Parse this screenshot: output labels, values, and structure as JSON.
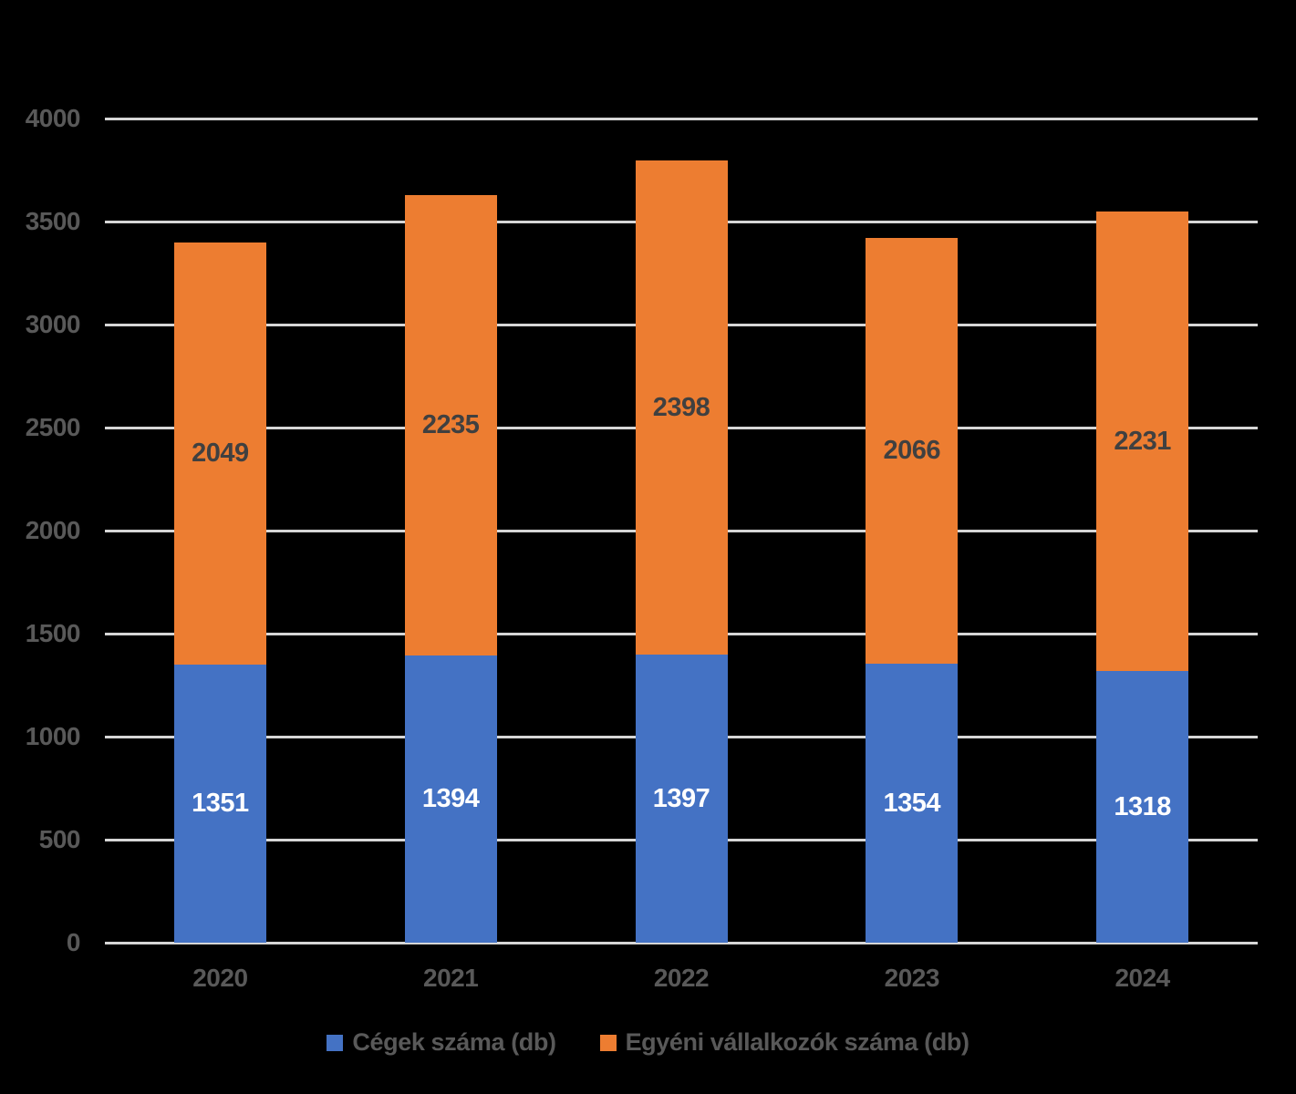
{
  "page": {
    "background": "#000000"
  },
  "chart_data": {
    "type": "bar",
    "stacked": true,
    "title": "",
    "xlabel": "",
    "ylabel": "",
    "categories": [
      "2020",
      "2021",
      "2022",
      "2023",
      "2024"
    ],
    "series": [
      {
        "name": "Cégek száma (db)",
        "color": "#4472C4",
        "label_color": "#FFFFFF",
        "values": [
          1351,
          1394,
          1397,
          1354,
          1318
        ]
      },
      {
        "name": "Egyéni vállalkozók száma (db)",
        "color": "#ED7D31",
        "label_color": "#404040",
        "values": [
          2049,
          2235,
          2398,
          2066,
          2231
        ]
      }
    ],
    "totals": [
      3400,
      3629,
      3795,
      3420,
      3549
    ],
    "ylim": [
      0,
      4000
    ],
    "ytick_step": 500,
    "yticks": [
      0,
      500,
      1000,
      1500,
      2000,
      2500,
      3000,
      3500,
      4000
    ],
    "grid": true,
    "gridline_color": "#D6D6D6",
    "axis_label_color": "#595959",
    "legend_position": "bottom",
    "legend_text_color": "#595959",
    "bar_labels_shown": true
  }
}
